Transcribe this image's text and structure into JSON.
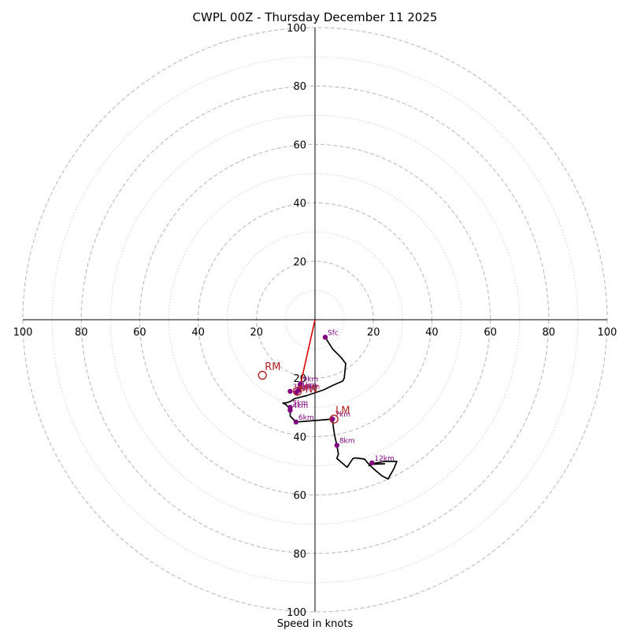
{
  "chart_data": {
    "type": "scatter",
    "subtype": "hodograph",
    "title": "CWPL 00Z - Thursday December 11 2025",
    "xlabel": "Speed in knots",
    "ylabel": "",
    "range_knots": 100,
    "ring_major_step": 20,
    "ring_minor_step": 10,
    "x_ticks": [
      "100",
      "80",
      "60",
      "40",
      "20",
      "20",
      "40",
      "60",
      "80",
      "100"
    ],
    "y_ticks": [
      "100",
      "80",
      "60",
      "40",
      "20",
      "20",
      "40",
      "60",
      "80",
      "100"
    ],
    "colors": {
      "profile": "#000000",
      "height_marker": "#800080",
      "motion": "#b22222",
      "shear_vector": "#dd0000",
      "ring_major": "#bbbbbb",
      "ring_minor": "#d0d0d0"
    },
    "profile_uv": [
      [
        3.5,
        -6.0
      ],
      [
        6,
        -10
      ],
      [
        9,
        -13
      ],
      [
        10.5,
        -15
      ],
      [
        10,
        -20
      ],
      [
        9.5,
        -21
      ],
      [
        6,
        -22.5
      ],
      [
        3,
        -24
      ],
      [
        -3,
        -26
      ],
      [
        -7,
        -27
      ],
      [
        -8.5,
        -28
      ],
      [
        -10,
        -28.5
      ],
      [
        -11,
        -28.5
      ],
      [
        -10,
        -29
      ],
      [
        -9,
        -30
      ],
      [
        -8.5,
        -31.5
      ],
      [
        -8.5,
        -33
      ],
      [
        -7.5,
        -34
      ],
      [
        -6.5,
        -35
      ],
      [
        0,
        -34.5
      ],
      [
        6,
        -34
      ],
      [
        6.3,
        -37
      ],
      [
        6.8,
        -40
      ],
      [
        7.5,
        -43
      ],
      [
        8,
        -46
      ],
      [
        7.5,
        -47.5
      ],
      [
        11,
        -50.5
      ],
      [
        13,
        -47.5
      ],
      [
        14,
        -47.3
      ],
      [
        17,
        -47.7
      ],
      [
        18,
        -49
      ],
      [
        20,
        -51
      ],
      [
        23,
        -53.5
      ],
      [
        25,
        -54.5
      ],
      [
        27,
        -51
      ],
      [
        28,
        -48.5
      ],
      [
        24,
        -48.5
      ],
      [
        21,
        -49
      ],
      [
        19.5,
        -49.3
      ],
      [
        18.5,
        -50
      ],
      [
        19,
        -49.5
      ],
      [
        24,
        -49.3
      ]
    ],
    "height_markers": [
      {
        "label": "Sfc",
        "u": 3.5,
        "v": -6.0
      },
      {
        "label": "1km",
        "u": -5.5,
        "v": -24
      },
      {
        "label": "2km",
        "u": -6.5,
        "v": -25
      },
      {
        "label": "3km",
        "u": -8.5,
        "v": -24.5
      },
      {
        "label": "4km",
        "u": -8.5,
        "v": -31
      },
      {
        "label": "5km",
        "u": -8.5,
        "v": -30
      },
      {
        "label": "6km",
        "u": -6.5,
        "v": -35
      },
      {
        "label": "7km",
        "u": 6,
        "v": -34
      },
      {
        "label": "8km",
        "u": 7.5,
        "v": -43
      },
      {
        "label": "9km",
        "u": -5,
        "v": -22
      },
      {
        "label": "10km",
        "u": -6,
        "v": -24.5
      },
      {
        "label": "12km",
        "u": 19.5,
        "v": -49
      }
    ],
    "storm_motions": [
      {
        "label": "RM",
        "u": -18,
        "v": -19,
        "dx": 0.8,
        "dy": -1.7
      },
      {
        "label": "LM",
        "u": 6.5,
        "v": -34,
        "dx": 0.5,
        "dy": -1.8
      },
      {
        "label": "MW",
        "u": -6,
        "v": -24.5,
        "dx": 0.6,
        "dy": 0.4
      }
    ],
    "shear_vector": {
      "from": [
        0,
        0
      ],
      "to": [
        -5.5,
        -24.5
      ]
    }
  }
}
